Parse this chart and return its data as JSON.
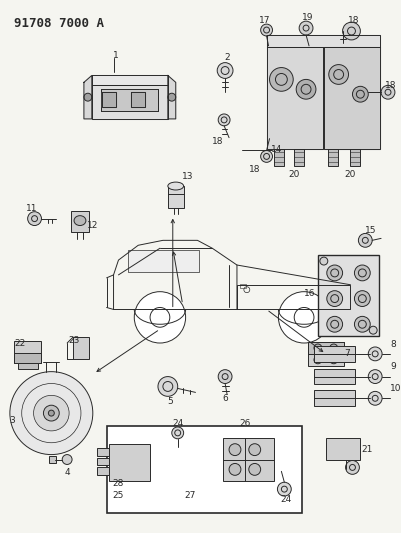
{
  "title": "91708 7000 A",
  "bg_color": "#f5f5f0",
  "line_color": "#2a2a2a",
  "figsize": [
    4.02,
    5.33
  ],
  "dpi": 100,
  "lw": 0.7
}
